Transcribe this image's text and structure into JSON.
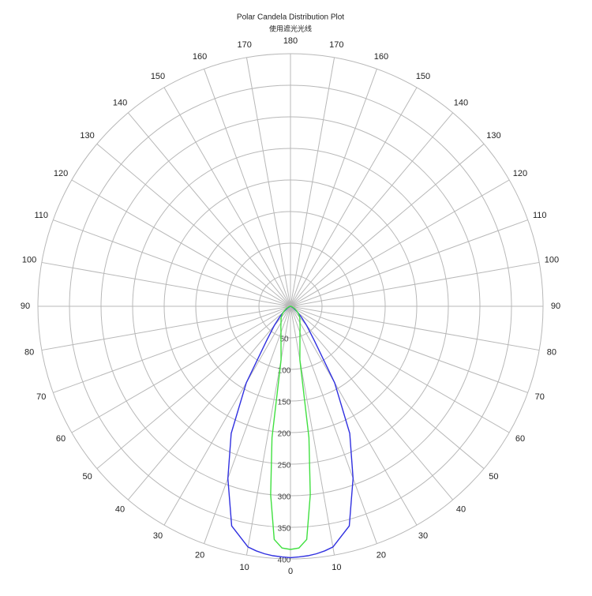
{
  "chart_data": {
    "type": "polar",
    "title": "Polar Candela Distribution Plot",
    "subtitle": "使用遮光光线",
    "angles": [
      0,
      2,
      4,
      6,
      8,
      10,
      15,
      20,
      25,
      30,
      35,
      40,
      45,
      50,
      60,
      70,
      80,
      90
    ],
    "series": [
      {
        "color": "#3030e0",
        "values": [
          398,
          397,
          396,
          394,
          391,
          387,
          360,
          290,
          222,
          140,
          65,
          40,
          25,
          15,
          5,
          1,
          0,
          0
        ]
      },
      {
        "color": "#40e040",
        "values": [
          385,
          383,
          370,
          300,
          210,
          86,
          58,
          44,
          36,
          30,
          26,
          23,
          19,
          15,
          8,
          3,
          1,
          0
        ]
      }
    ],
    "rlim": [
      0,
      400
    ],
    "rticks": [
      50,
      100,
      150,
      200,
      250,
      300,
      350,
      400
    ],
    "thetaticks": [
      0,
      10,
      20,
      30,
      40,
      50,
      60,
      70,
      80,
      90,
      100,
      110,
      120,
      130,
      140,
      150,
      160,
      170,
      180
    ],
    "grid": true
  }
}
